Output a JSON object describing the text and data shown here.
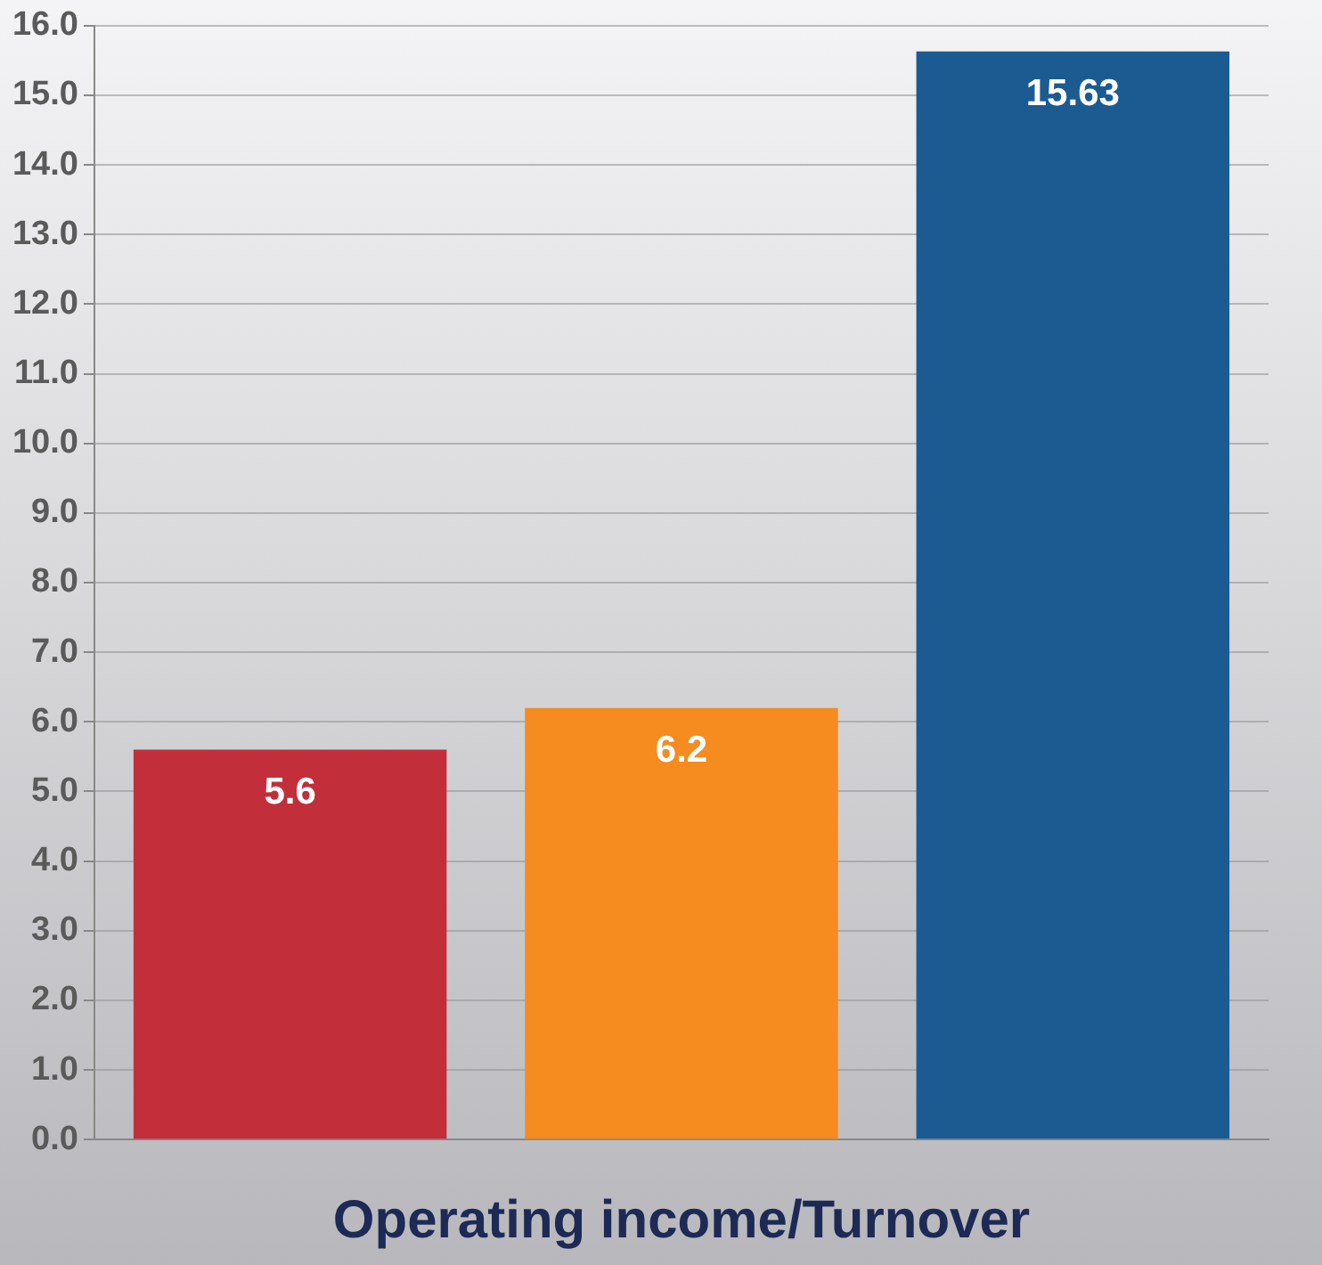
{
  "chart_data": {
    "type": "bar",
    "xlabel": "Operating income/Turnover",
    "categories": [
      null,
      null,
      null
    ],
    "values": [
      5.6,
      6.2,
      15.63
    ],
    "colors": [
      "#c22f3a",
      "#f68b1f",
      "#1b5b92"
    ],
    "ylim": [
      0,
      16
    ],
    "yticks": [
      {
        "value": 0,
        "label": "0.0"
      },
      {
        "value": 1,
        "label": "1.0"
      },
      {
        "value": 2,
        "label": "2.0"
      },
      {
        "value": 3,
        "label": "3.0"
      },
      {
        "value": 4,
        "label": "4.0"
      },
      {
        "value": 5,
        "label": "5.0"
      },
      {
        "value": 6,
        "label": "6.0"
      },
      {
        "value": 7,
        "label": "7.0"
      },
      {
        "value": 8,
        "label": "8.0"
      },
      {
        "value": 9,
        "label": "9.0"
      },
      {
        "value": 10,
        "label": "10.0"
      },
      {
        "value": 11,
        "label": "11.0"
      },
      {
        "value": 12,
        "label": "12.0"
      },
      {
        "value": 13,
        "label": "13.0"
      },
      {
        "value": 14,
        "label": "14.0"
      },
      {
        "value": 15,
        "label": "15.0"
      },
      {
        "value": 16,
        "label": "16.0"
      }
    ],
    "grid": "y",
    "data_labels": true,
    "legend": false
  }
}
